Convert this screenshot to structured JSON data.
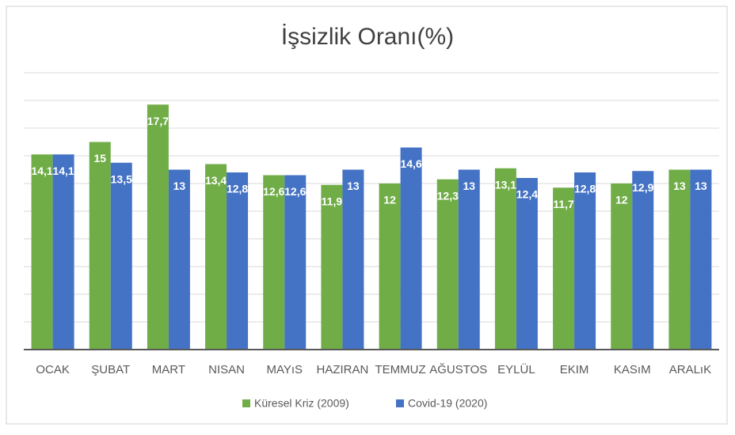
{
  "chart_data": {
    "type": "bar",
    "title": "İşsizlik Oranı(%)",
    "categories": [
      "OCAK",
      "ŞUBAT",
      "MART",
      "NISAN",
      "MAYıS",
      "HAZIRAN",
      "TEMMUZ",
      "AĞUSTOS",
      "EYLÜL",
      "EKIM",
      "KASıM",
      "ARALıK"
    ],
    "series": [
      {
        "name": "Küresel Kriz (2009)",
        "color": "#70ad47",
        "values": [
          14.1,
          15,
          17.7,
          13.4,
          12.6,
          11.9,
          12,
          12.3,
          13.1,
          11.7,
          12,
          13
        ],
        "value_labels": [
          "14,1",
          "15",
          "17,7",
          "13,4",
          "12,6",
          "11,9",
          "12",
          "12,3",
          "13,1",
          "11,7",
          "12",
          "13"
        ]
      },
      {
        "name": "Covid-19 (2020)",
        "color": "#4472c4",
        "values": [
          14.1,
          13.5,
          13,
          12.8,
          12.6,
          13,
          14.6,
          13,
          12.4,
          12.8,
          12.9,
          13
        ],
        "value_labels": [
          "14,1",
          "13,5",
          "13",
          "12,8",
          "12,6",
          "13",
          "14,6",
          "13",
          "12,4",
          "12,8",
          "12,9",
          "13"
        ]
      }
    ],
    "ylim": [
      0,
      20
    ],
    "yticks": [
      0,
      2,
      4,
      6,
      8,
      10,
      12,
      14,
      16,
      18,
      20
    ],
    "grid": true,
    "legend": "bottom"
  }
}
